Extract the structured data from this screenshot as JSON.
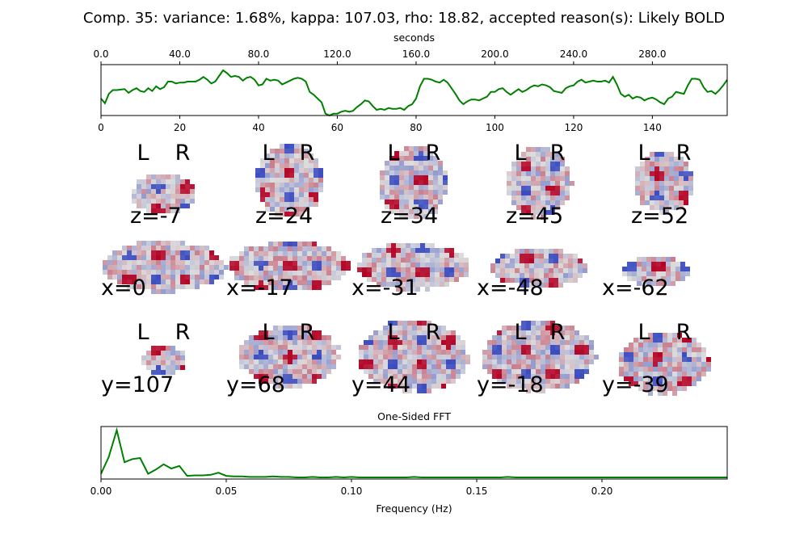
{
  "title": "Comp. 35: variance: 1.68%, kappa: 107.03, rho: 18.82, accepted reason(s): Likely BOLD",
  "colors": {
    "series": "#008000",
    "cold": "#3b4cc0",
    "neutral": "#dddddd",
    "hot": "#b40426"
  },
  "chart_data": [
    {
      "type": "line",
      "name": "time-series",
      "top_axis": {
        "label": "seconds",
        "ticks": [
          "0.0",
          "40.0",
          "80.0",
          "120.0",
          "160.0",
          "200.0",
          "240.0",
          "280.0"
        ],
        "tick_values": [
          0,
          40,
          80,
          120,
          160,
          200,
          240,
          280
        ]
      },
      "bottom_axis": {
        "ticks": [
          "0",
          "20",
          "40",
          "60",
          "80",
          "100",
          "120",
          "140"
        ],
        "tick_values": [
          0,
          20,
          40,
          60,
          80,
          100,
          120,
          140
        ]
      },
      "xlim": [
        0,
        159
      ],
      "ylim": [
        -2.8,
        2.6
      ],
      "x": [
        0,
        1,
        2,
        3,
        4,
        5,
        6,
        7,
        8,
        9,
        10,
        11,
        12,
        13,
        14,
        15,
        16,
        17,
        18,
        19,
        20,
        21,
        22,
        23,
        24,
        25,
        26,
        27,
        28,
        29,
        30,
        31,
        32,
        33,
        34,
        35,
        36,
        37,
        38,
        39,
        40,
        41,
        42,
        43,
        44,
        45,
        46,
        47,
        48,
        49,
        50,
        51,
        52,
        53,
        54,
        55,
        56,
        57,
        58,
        59,
        60,
        61,
        62,
        63,
        64,
        65,
        66,
        67,
        68,
        69,
        70,
        71,
        72,
        73,
        74,
        75,
        76,
        77,
        78,
        79,
        80,
        81,
        82,
        83,
        84,
        85,
        86,
        87,
        88,
        89,
        90,
        91,
        92,
        93,
        94,
        95,
        96,
        97,
        98,
        99,
        100,
        101,
        102,
        103,
        104,
        105,
        106,
        107,
        108,
        109,
        110,
        111,
        112,
        113,
        114,
        115,
        116,
        117,
        118,
        119,
        120,
        121,
        122,
        123,
        124,
        125,
        126,
        127,
        128,
        129,
        130,
        131,
        132,
        133,
        134,
        135,
        136,
        137,
        138,
        139,
        140,
        141,
        142,
        143,
        144,
        145,
        146,
        147,
        148,
        149,
        150,
        151,
        152,
        153,
        154,
        155,
        156,
        157,
        158,
        159
      ],
      "y": [
        -1.0,
        -1.5,
        -0.5,
        -0.1,
        -0.1,
        -0.05,
        0.0,
        -0.4,
        -0.1,
        0.1,
        -0.2,
        -0.3,
        0.1,
        -0.2,
        0.3,
        0.0,
        0.2,
        0.8,
        0.8,
        0.6,
        0.7,
        0.7,
        0.8,
        0.8,
        0.8,
        1.0,
        1.3,
        1.0,
        0.6,
        0.8,
        1.4,
        2.0,
        1.7,
        1.3,
        1.4,
        1.3,
        0.9,
        1.2,
        1.3,
        1.0,
        0.4,
        0.5,
        1.1,
        0.9,
        1.0,
        0.9,
        0.5,
        0.7,
        0.9,
        1.1,
        1.2,
        1.1,
        0.8,
        -0.3,
        -0.6,
        -1.0,
        -1.4,
        -2.6,
        -2.8,
        -2.6,
        -2.6,
        -2.4,
        -2.3,
        -2.4,
        -2.3,
        -1.9,
        -1.6,
        -1.2,
        -1.3,
        -1.8,
        -2.2,
        -2.1,
        -2.2,
        -2.0,
        -2.1,
        -2.1,
        -2.0,
        -2.2,
        -1.8,
        -1.6,
        -1.0,
        0.3,
        1.1,
        1.1,
        1.0,
        0.8,
        0.7,
        1.0,
        0.7,
        0.1,
        -0.5,
        -1.2,
        -1.6,
        -1.3,
        -1.1,
        -1.1,
        -1.2,
        -1.0,
        -0.8,
        -0.3,
        -0.3,
        0.0,
        0.1,
        -0.3,
        -0.6,
        -0.3,
        0.0,
        -0.3,
        -0.1,
        0.2,
        0.4,
        0.3,
        0.5,
        0.4,
        0.2,
        -0.2,
        -0.3,
        -0.4,
        0.1,
        0.3,
        0.4,
        0.8,
        1.0,
        0.7,
        0.8,
        0.9,
        0.8,
        0.8,
        0.9,
        0.7,
        1.3,
        0.5,
        -0.5,
        -0.8,
        -0.6,
        -1.0,
        -0.8,
        -0.9,
        -1.2,
        -1.0,
        -0.9,
        -1.1,
        -1.4,
        -1.6,
        -1.0,
        -0.8,
        -0.3,
        -0.4,
        -0.5,
        0.4,
        1.1,
        1.1,
        1.0,
        0.2,
        -0.3,
        -0.2,
        -0.5,
        -0.1,
        0.4,
        1.0
      ]
    },
    {
      "type": "line",
      "name": "fft",
      "title": "One-Sided FFT",
      "xlabel": "Frequency (Hz)",
      "ticks": [
        "0.00",
        "0.05",
        "0.10",
        "0.15",
        "0.20"
      ],
      "tick_values": [
        0,
        0.05,
        0.1,
        0.15,
        0.2
      ],
      "xlim": [
        0,
        0.25
      ],
      "ylim": [
        0,
        1.0
      ],
      "x": [
        0,
        0.0031,
        0.0063,
        0.0094,
        0.0125,
        0.0156,
        0.0188,
        0.0219,
        0.025,
        0.0281,
        0.0313,
        0.0344,
        0.0375,
        0.0406,
        0.0438,
        0.0469,
        0.05,
        0.0531,
        0.0563,
        0.0594,
        0.0625,
        0.0656,
        0.0688,
        0.0719,
        0.075,
        0.0781,
        0.0813,
        0.0844,
        0.0875,
        0.0906,
        0.0938,
        0.0969,
        0.1,
        0.1031,
        0.1063,
        0.1094,
        0.1125,
        0.1156,
        0.1188,
        0.1219,
        0.125,
        0.1281,
        0.1313,
        0.1344,
        0.1375,
        0.1406,
        0.1438,
        0.1469,
        0.15,
        0.1531,
        0.1563,
        0.1594,
        0.1625,
        0.1656,
        0.1688,
        0.1719,
        0.175,
        0.1781,
        0.1813,
        0.1844,
        0.1875,
        0.1906,
        0.1938,
        0.1969,
        0.2,
        0.2031,
        0.2063,
        0.2094,
        0.2125,
        0.2156,
        0.2188,
        0.2219,
        0.225,
        0.2281,
        0.2313,
        0.2344,
        0.2375,
        0.2406,
        0.2438,
        0.2469,
        0.25
      ],
      "y": [
        0.1,
        0.42,
        0.93,
        0.32,
        0.38,
        0.4,
        0.1,
        0.18,
        0.28,
        0.2,
        0.25,
        0.06,
        0.07,
        0.07,
        0.08,
        0.12,
        0.06,
        0.05,
        0.05,
        0.04,
        0.04,
        0.04,
        0.05,
        0.04,
        0.04,
        0.03,
        0.03,
        0.04,
        0.03,
        0.03,
        0.04,
        0.03,
        0.04,
        0.03,
        0.03,
        0.03,
        0.03,
        0.03,
        0.03,
        0.03,
        0.04,
        0.03,
        0.03,
        0.03,
        0.03,
        0.03,
        0.03,
        0.03,
        0.03,
        0.03,
        0.03,
        0.03,
        0.04,
        0.03,
        0.03,
        0.03,
        0.03,
        0.03,
        0.03,
        0.03,
        0.03,
        0.03,
        0.03,
        0.03,
        0.03,
        0.03,
        0.03,
        0.03,
        0.03,
        0.03,
        0.03,
        0.03,
        0.03,
        0.03,
        0.03,
        0.03,
        0.03,
        0.03,
        0.03,
        0.03,
        0.03
      ]
    }
  ],
  "brain_slices": {
    "axial": [
      {
        "label": "z=-7",
        "orient_left": "L",
        "orient_right": "R"
      },
      {
        "label": "z=24",
        "orient_left": "L",
        "orient_right": "R"
      },
      {
        "label": "z=34",
        "orient_left": "L",
        "orient_right": "R"
      },
      {
        "label": "z=45",
        "orient_left": "L",
        "orient_right": "R"
      },
      {
        "label": "z=52",
        "orient_left": "L",
        "orient_right": "R"
      }
    ],
    "sagittal": [
      {
        "label": "x=0"
      },
      {
        "label": "x=-17"
      },
      {
        "label": "x=-31"
      },
      {
        "label": "x=-48"
      },
      {
        "label": "x=-62"
      }
    ],
    "coronal": [
      {
        "label": "y=107",
        "orient_left": "L",
        "orient_right": "R"
      },
      {
        "label": "y=68",
        "orient_left": "L",
        "orient_right": "R"
      },
      {
        "label": "y=44",
        "orient_left": "L",
        "orient_right": "R"
      },
      {
        "label": "y=-18",
        "orient_left": "L",
        "orient_right": "R"
      },
      {
        "label": "y=-39",
        "orient_left": "L",
        "orient_right": "R"
      }
    ]
  }
}
